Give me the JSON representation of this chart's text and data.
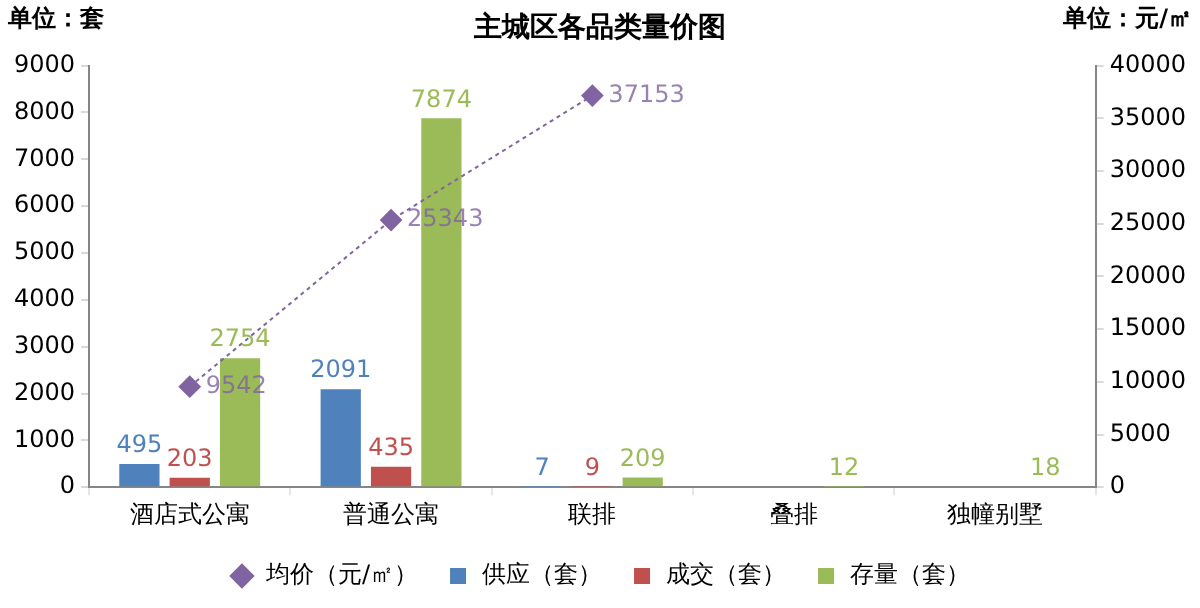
{
  "chart_data": {
    "type": "bar",
    "title": "主城区各品类量价图",
    "ylabel": "单位：套",
    "y2label": "单位：元/㎡",
    "categories": [
      "酒店式公寓",
      "普通公寓",
      "联排",
      "叠排",
      "独幢别墅"
    ],
    "series": [
      {
        "name": "供应（套）",
        "color": "#4f81bd",
        "values": [
          495,
          2091,
          7,
          null,
          null
        ]
      },
      {
        "name": "成交（套）",
        "color": "#c0504d",
        "values": [
          203,
          435,
          9,
          null,
          null
        ]
      },
      {
        "name": "存量（套）",
        "color": "#9bbb59",
        "values": [
          2754,
          7874,
          209,
          12,
          18
        ]
      },
      {
        "name": "均价（元/㎡）",
        "type": "line",
        "axis": "y2",
        "color": "#8064a2",
        "marker": "diamond",
        "line_style": "dotted",
        "values": [
          9542,
          25343,
          37153,
          null,
          null
        ]
      }
    ],
    "ylim": [
      0,
      9000
    ],
    "yticks": [
      0,
      1000,
      2000,
      3000,
      4000,
      5000,
      6000,
      7000,
      8000,
      9000
    ],
    "y2lim": [
      0,
      40000
    ],
    "y2ticks": [
      0,
      5000,
      10000,
      15000,
      20000,
      25000,
      30000,
      35000,
      40000
    ],
    "data_labels": true,
    "grid": false,
    "legend": "bottom"
  }
}
